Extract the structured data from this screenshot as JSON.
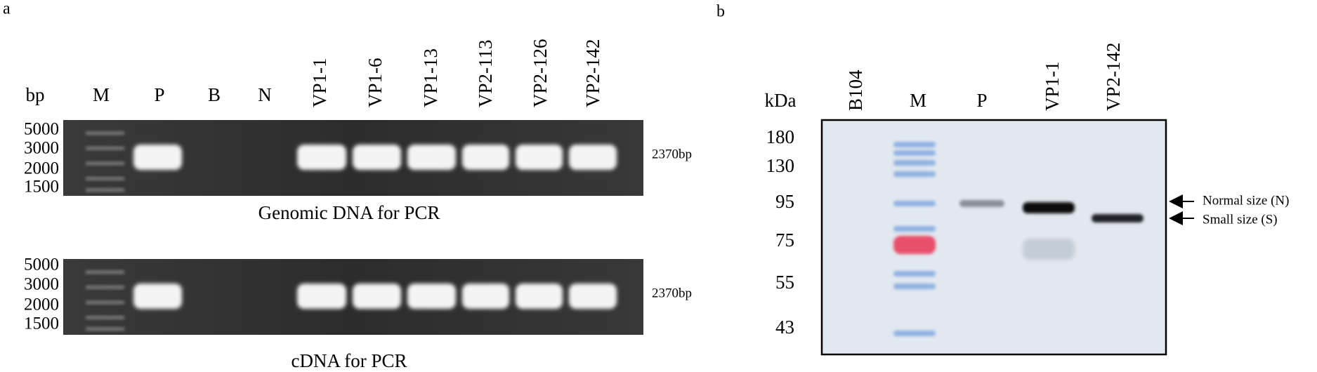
{
  "panel_a": {
    "label": "a",
    "unit": "bp",
    "lanes": [
      "M",
      "P",
      "B",
      "N",
      "VP1-1",
      "VP1-6",
      "VP1-13",
      "VP2-113",
      "VP2-126",
      "VP2-142"
    ],
    "gels": [
      {
        "markers": [
          "5000",
          "3000",
          "2000",
          "1500"
        ],
        "band_label": "2370bp",
        "caption": "Genomic DNA for PCR"
      },
      {
        "markers": [
          "5000",
          "3000",
          "2000",
          "1500"
        ],
        "band_label": "2370bp",
        "caption": "cDNA for PCR"
      }
    ]
  },
  "panel_b": {
    "label": "b",
    "unit": "kDa",
    "lanes": [
      "B104",
      "M",
      "P",
      "VP1-1",
      "VP2-142"
    ],
    "markers": [
      "180",
      "130",
      "95",
      "75",
      "55",
      "43"
    ],
    "arrows": [
      "Normal size (N)",
      "Small size (S)"
    ]
  }
}
